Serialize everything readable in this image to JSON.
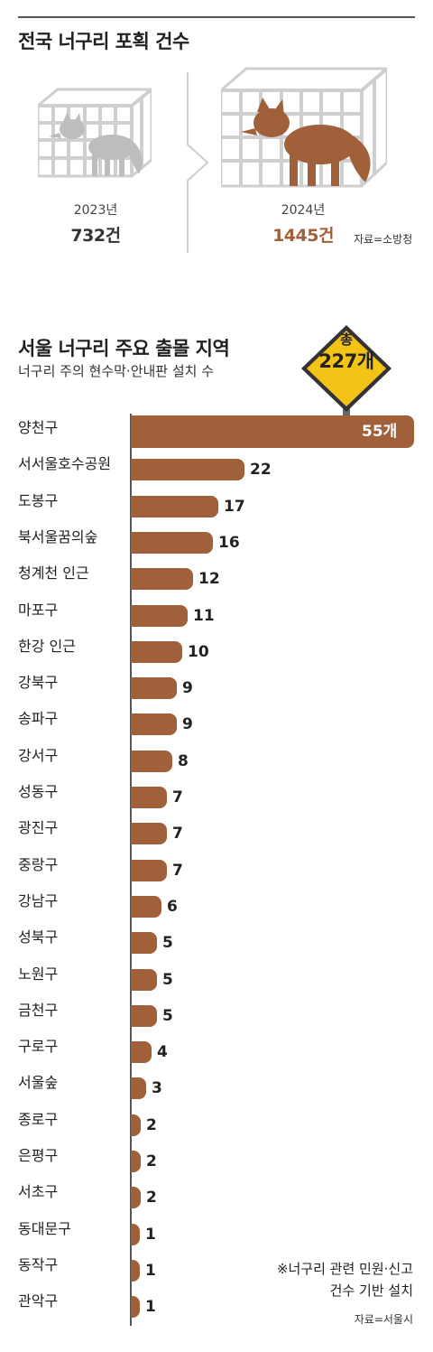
{
  "header": {
    "title": "전국 너구리 포획 건수"
  },
  "capture": [
    {
      "year": "2023년",
      "count": "732건",
      "value": 732,
      "color": "#444444"
    },
    {
      "year": "2024년",
      "count": "1445건",
      "value": 1445,
      "color": "#a0603a"
    }
  ],
  "capture_source": "자료=소방청",
  "section": {
    "title": "서울 너구리 주요 출몰 지역",
    "subtitle": "너구리 주의 현수막·안내판 설치 수",
    "total_line1": "총",
    "total_line2": "227개"
  },
  "chart_data": {
    "type": "bar",
    "orientation": "horizontal",
    "categories": [
      "양천구",
      "서서울호수공원",
      "도봉구",
      "북서울꿈의숲",
      "청계천 인근",
      "마포구",
      "한강 인근",
      "강북구",
      "송파구",
      "강서구",
      "성동구",
      "광진구",
      "중랑구",
      "강남구",
      "성북구",
      "노원구",
      "금천구",
      "구로구",
      "서울숲",
      "종로구",
      "은평구",
      "서초구",
      "동대문구",
      "동작구",
      "관악구"
    ],
    "values": [
      55,
      22,
      17,
      16,
      12,
      11,
      10,
      9,
      9,
      8,
      7,
      7,
      7,
      6,
      5,
      5,
      5,
      4,
      3,
      2,
      2,
      2,
      1,
      1,
      1
    ],
    "labels": [
      "55개",
      "22",
      "17",
      "16",
      "12",
      "11",
      "10",
      "9",
      "9",
      "8",
      "7",
      "7",
      "7",
      "6",
      "5",
      "5",
      "5",
      "4",
      "3",
      "2",
      "2",
      "2",
      "1",
      "1",
      "1"
    ],
    "bar_color": "#a0603a"
  },
  "notes": {
    "line1": "※너구리 관련 민원·신고",
    "line2": "건수 기반 설치",
    "source": "자료=서울시"
  }
}
